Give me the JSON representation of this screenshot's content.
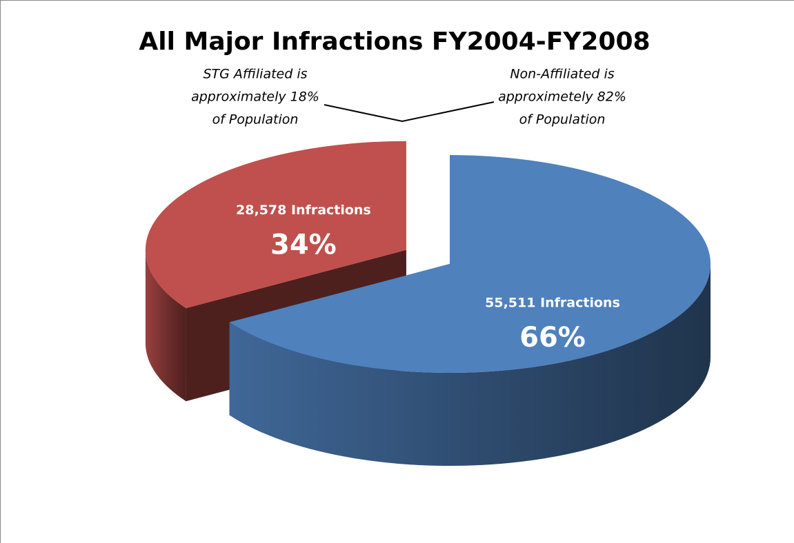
{
  "chart_data": {
    "type": "pie",
    "title": "All Major Infractions FY2004-FY2008",
    "values": [
      28578,
      55511
    ],
    "value_labels": [
      "28,578 Infractions",
      "55,511 Infractions"
    ],
    "percents": [
      34,
      66
    ],
    "percent_labels": [
      "34%",
      "66%"
    ],
    "colors": [
      "#c0504d",
      "#4f81bd"
    ],
    "annotations": [
      [
        "STG Affiliated is",
        "approximately 18%",
        "of Population"
      ],
      [
        "Non-Affiliated is",
        "approximetely 82%",
        "of Population"
      ]
    ]
  }
}
